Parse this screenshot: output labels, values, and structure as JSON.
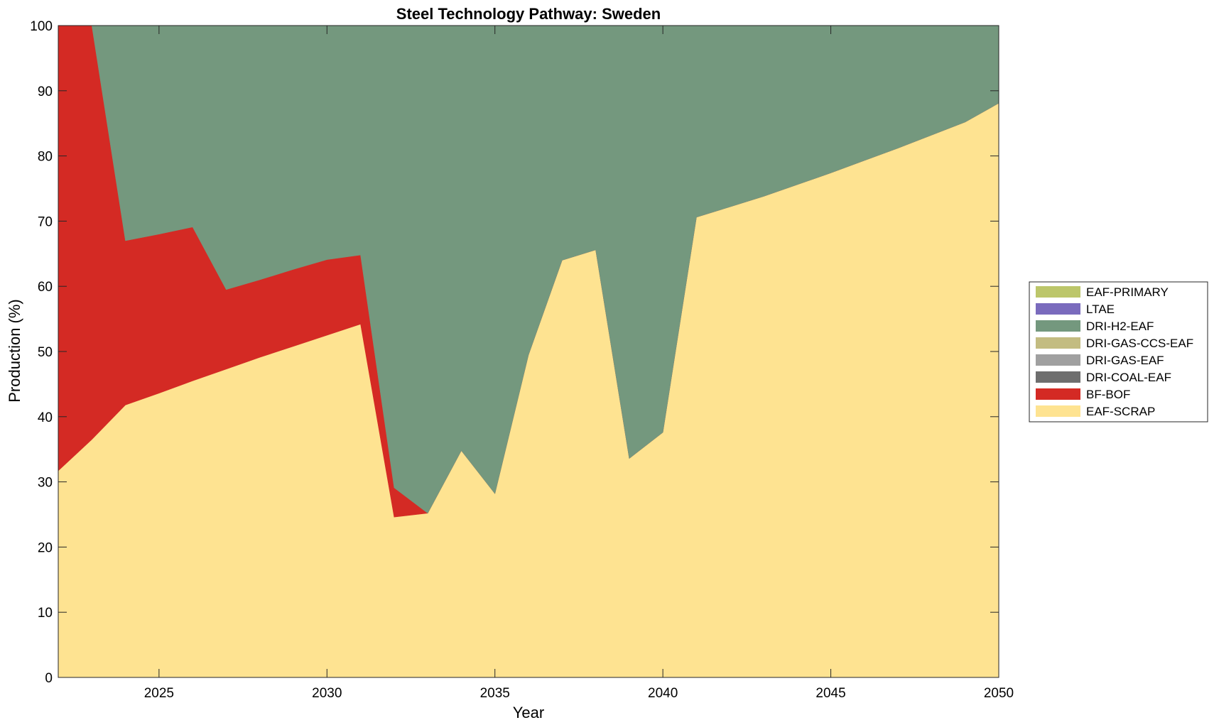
{
  "chart_data": {
    "type": "area",
    "stacked": true,
    "title": "Steel Technology Pathway: Sweden",
    "xlabel": "Year",
    "ylabel": "Production (%)",
    "xlim": [
      2022,
      2050
    ],
    "ylim": [
      0,
      100
    ],
    "xticks": [
      2025,
      2030,
      2035,
      2040,
      2045,
      2050
    ],
    "yticks": [
      0,
      10,
      20,
      30,
      40,
      50,
      60,
      70,
      80,
      90,
      100
    ],
    "grid": false,
    "legend_position": "right",
    "x": [
      2022,
      2023,
      2024,
      2025,
      2026,
      2027,
      2028,
      2029,
      2030,
      2031,
      2032,
      2033,
      2034,
      2035,
      2036,
      2037,
      2038,
      2039,
      2040,
      2041,
      2042,
      2043,
      2044,
      2045,
      2046,
      2047,
      2048,
      2049,
      2050
    ],
    "series": [
      {
        "name": "EAF-SCRAP",
        "color": "#fee391",
        "values": [
          31.7,
          36.5,
          41.8,
          43.6,
          45.5,
          47.3,
          49.1,
          50.8,
          52.5,
          54.2,
          24.6,
          25.2,
          34.8,
          28.2,
          49.5,
          64.0,
          65.6,
          33.6,
          37.6,
          70.6,
          72.2,
          73.8,
          75.6,
          77.4,
          79.3,
          81.2,
          83.2,
          85.2,
          88.1
        ]
      },
      {
        "name": "BF-BOF",
        "color": "#d42a24",
        "values": [
          68.3,
          63.5,
          25.2,
          24.4,
          23.6,
          12.2,
          11.9,
          11.8,
          11.6,
          10.6,
          4.5,
          0,
          0,
          0,
          0,
          0,
          0,
          0,
          0,
          0,
          0,
          0,
          0,
          0,
          0,
          0,
          0,
          0,
          0
        ]
      },
      {
        "name": "DRI-COAL-EAF",
        "color": "#6e6e6e",
        "values": [
          0,
          0,
          0,
          0,
          0,
          0,
          0,
          0,
          0,
          0,
          0,
          0,
          0,
          0,
          0,
          0,
          0,
          0,
          0,
          0,
          0,
          0,
          0,
          0,
          0,
          0,
          0,
          0,
          0
        ]
      },
      {
        "name": "DRI-GAS-EAF",
        "color": "#a0a0a0",
        "values": [
          0,
          0,
          0,
          0,
          0,
          0,
          0,
          0,
          0,
          0,
          0,
          0,
          0,
          0,
          0,
          0,
          0,
          0,
          0,
          0,
          0,
          0,
          0,
          0,
          0,
          0,
          0,
          0,
          0
        ]
      },
      {
        "name": "DRI-GAS-CCS-EAF",
        "color": "#c3bc81",
        "values": [
          0,
          0,
          0,
          0,
          0,
          0,
          0,
          0,
          0,
          0,
          0,
          0,
          0,
          0,
          0,
          0,
          0,
          0,
          0,
          0,
          0,
          0,
          0,
          0,
          0,
          0,
          0,
          0,
          0
        ]
      },
      {
        "name": "DRI-H2-EAF",
        "color": "#74987e",
        "values": [
          0,
          0,
          33.0,
          32.0,
          30.9,
          40.5,
          39.0,
          37.4,
          35.9,
          35.2,
          70.9,
          74.8,
          65.2,
          71.8,
          50.5,
          36.0,
          34.4,
          66.4,
          62.4,
          29.4,
          27.8,
          26.2,
          24.4,
          22.6,
          20.7,
          18.8,
          16.8,
          14.8,
          11.9
        ]
      },
      {
        "name": "LTAE",
        "color": "#7a6bbd",
        "values": [
          0,
          0,
          0,
          0,
          0,
          0,
          0,
          0,
          0,
          0,
          0,
          0,
          0,
          0,
          0,
          0,
          0,
          0,
          0,
          0,
          0,
          0,
          0,
          0,
          0,
          0,
          0,
          0,
          0
        ]
      },
      {
        "name": "EAF-PRIMARY",
        "color": "#bcc66a",
        "values": [
          0,
          0,
          0,
          0,
          0,
          0,
          0,
          0,
          0,
          0,
          0,
          0,
          0,
          0,
          0,
          0,
          0,
          0,
          0,
          0,
          0,
          0,
          0,
          0,
          0,
          0,
          0,
          0,
          0
        ]
      }
    ],
    "legend_order": [
      "EAF-PRIMARY",
      "LTAE",
      "DRI-H2-EAF",
      "DRI-GAS-CCS-EAF",
      "DRI-GAS-EAF",
      "DRI-COAL-EAF",
      "BF-BOF",
      "EAF-SCRAP"
    ]
  }
}
